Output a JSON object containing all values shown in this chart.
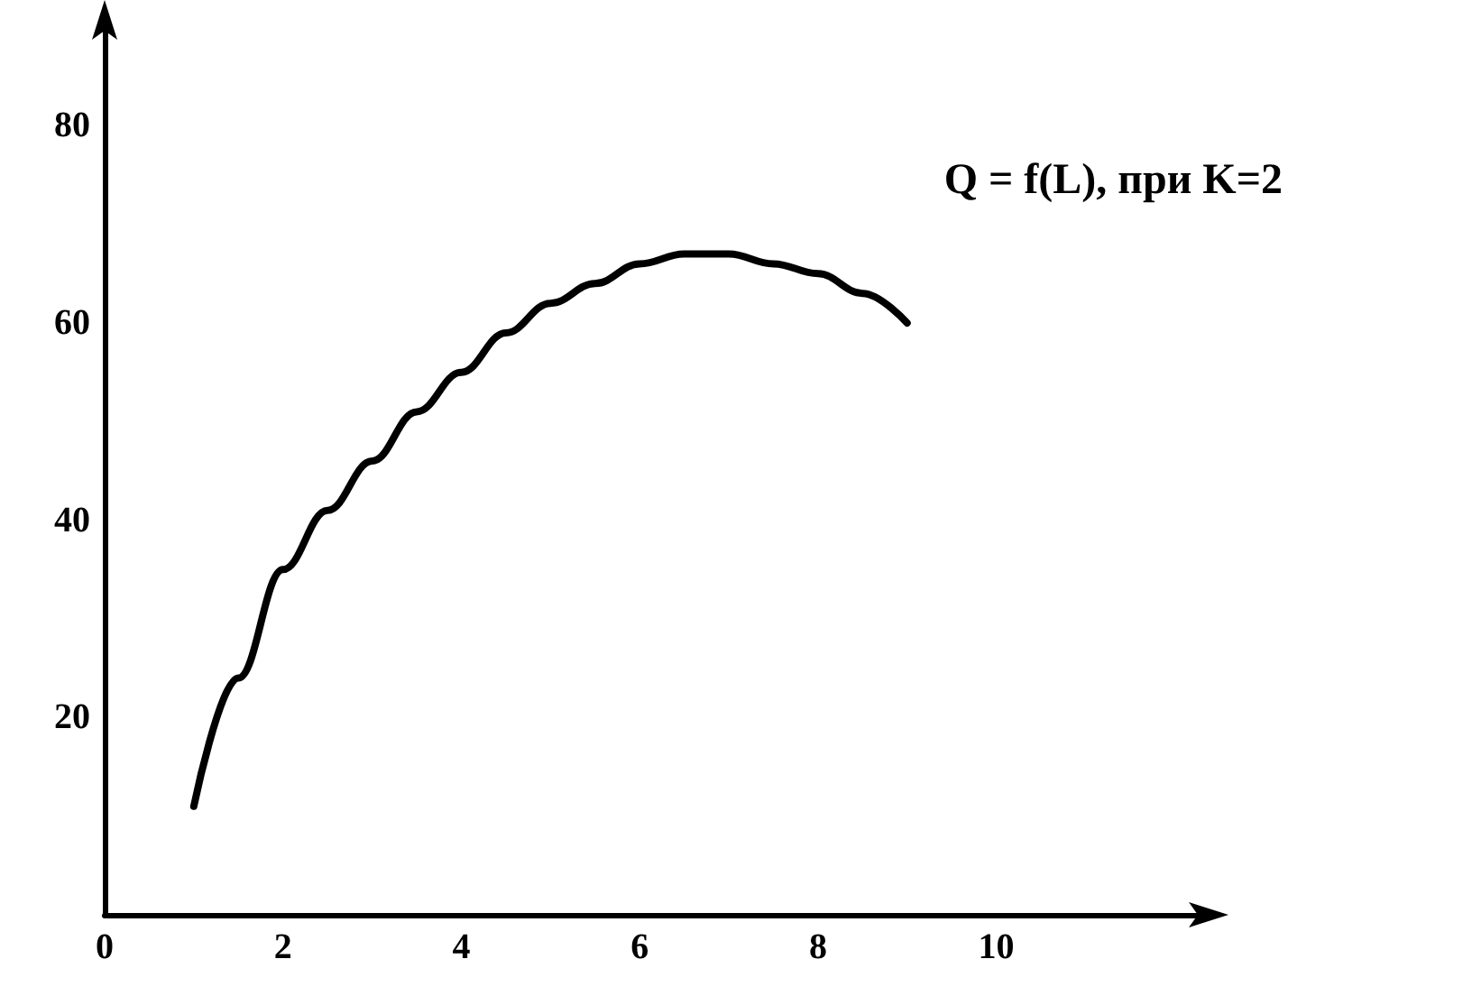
{
  "chart_data": {
    "type": "line",
    "x": [
      1,
      1.5,
      2,
      2.5,
      3,
      3.5,
      4,
      4.5,
      5,
      5.5,
      6,
      6.5,
      7,
      7.5,
      8,
      8.5,
      9
    ],
    "values": [
      11,
      24,
      35,
      41,
      46,
      51,
      55,
      59,
      62,
      64,
      66,
      67,
      67,
      66,
      65,
      63,
      60
    ],
    "color": "#000000",
    "xlim": [
      0,
      12.3
    ],
    "ylim": [
      0,
      90
    ],
    "xticks": [
      0,
      2,
      4,
      6,
      8,
      10
    ],
    "yticks": [
      20,
      40,
      60,
      80
    ],
    "grid": false,
    "marker": "none",
    "line_style": "solid",
    "annotations": [
      "Q = f(L), при K=2"
    ]
  }
}
